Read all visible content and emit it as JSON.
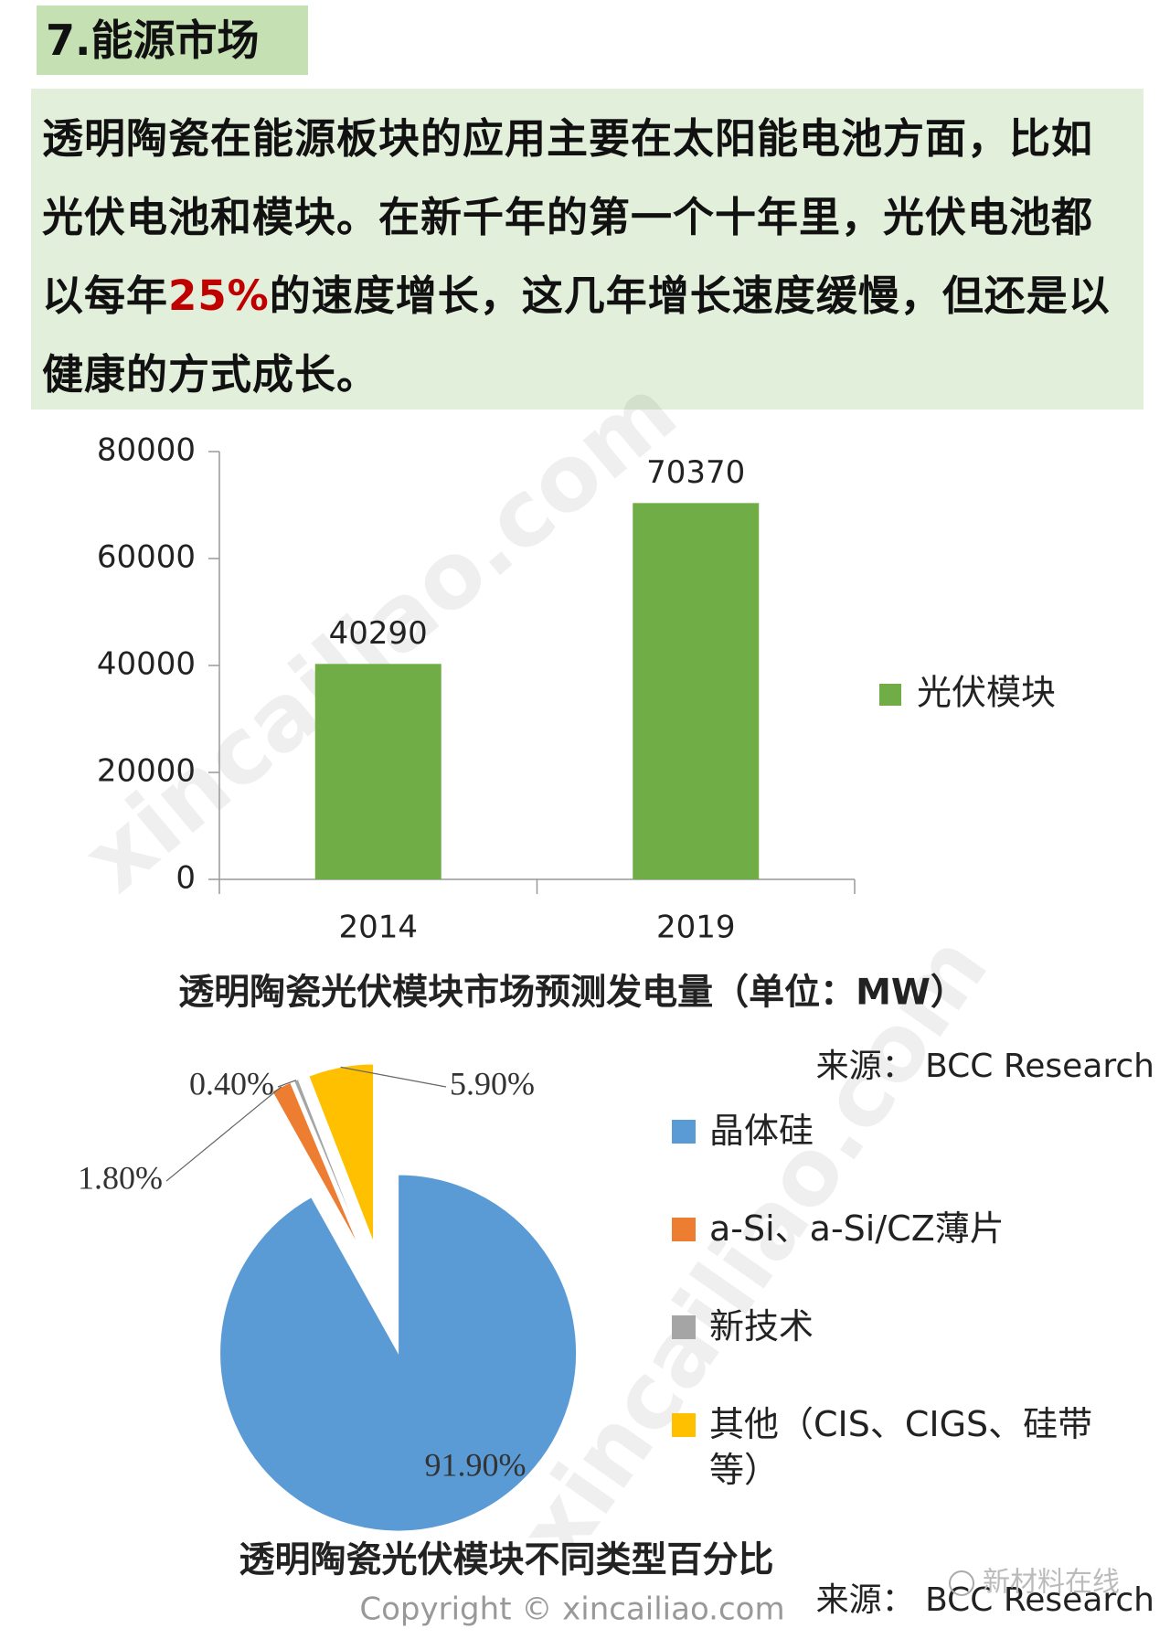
{
  "header": {
    "title": "7.能源市场"
  },
  "paragraph": {
    "before": "透明陶瓷在能源板块的应用主要在太阳能电池方面，比如光伏电池和模块。在新千年的第一个十年里，光伏电池都以每年",
    "highlight": "25%",
    "after": "的速度增长，这几年增长速度缓慢，但还是以健康的方式成长。"
  },
  "chart_data": [
    {
      "type": "bar",
      "title": "透明陶瓷光伏模块市场预测发电量（单位：MW）",
      "source": "来源： BCC Research",
      "categories": [
        "2014",
        "2019"
      ],
      "series": [
        {
          "name": "光伏模块",
          "color": "#70ad47",
          "values": [
            40290,
            70370
          ]
        }
      ],
      "ylim": [
        0,
        80000
      ],
      "yticks": [
        0,
        20000,
        40000,
        60000,
        80000
      ],
      "grid": false,
      "legend": "right"
    },
    {
      "type": "pie",
      "title": "透明陶瓷光伏模块不同类型百分比",
      "source": "来源： BCC Research",
      "categories": [
        "晶体硅",
        "a-Si、a-Si/CZ薄片",
        "新技术",
        "其他（CIS、CIGS、硅带等）"
      ],
      "values": [
        91.9,
        1.8,
        0.4,
        5.9
      ],
      "value_labels": [
        "91.90%",
        "1.80%",
        "0.40%",
        "5.90%"
      ],
      "colors": [
        "#5b9bd5",
        "#ed7d31",
        "#a5a5a5",
        "#ffc000"
      ],
      "legend": "right"
    }
  ],
  "watermark": "xincailiao.com",
  "footer": {
    "copyright": "Copyright © xincailiao.com",
    "brand": "新材料在线"
  }
}
